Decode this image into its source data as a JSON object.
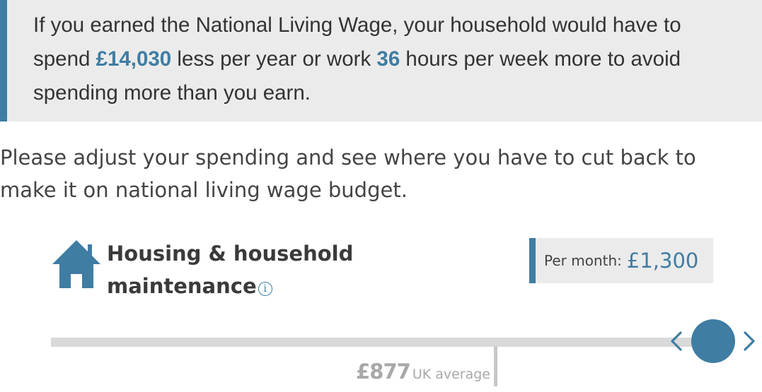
{
  "summary": {
    "line1": "If you earned the National Living Wage, your household would have to",
    "line2_a": "spend ",
    "spend_less_amount": "£14,030",
    "line2_b": " less per year or work ",
    "extra_hours": "36",
    "line2_c": " hours per week more to avoid",
    "line3": "spending more than you earn."
  },
  "intro": {
    "line1": "Please adjust your spending and see where you have to cut back to",
    "line2": "make it on national living wage budget."
  },
  "category": {
    "title_line1": "Housing & household",
    "title_line2": "maintenance",
    "info_glyph": "i",
    "icon": "house-icon",
    "per_month_label": "Per month:",
    "per_month_value": "£1,300",
    "uk_average_value": "£877",
    "uk_average_label": "UK average"
  },
  "slider": {
    "current_per_month": 1300,
    "uk_average": 877
  },
  "colors": {
    "accent": "#3f7da3",
    "panel": "#ebebeb",
    "track": "#d9d9d9",
    "muted": "#a8a8a8"
  }
}
